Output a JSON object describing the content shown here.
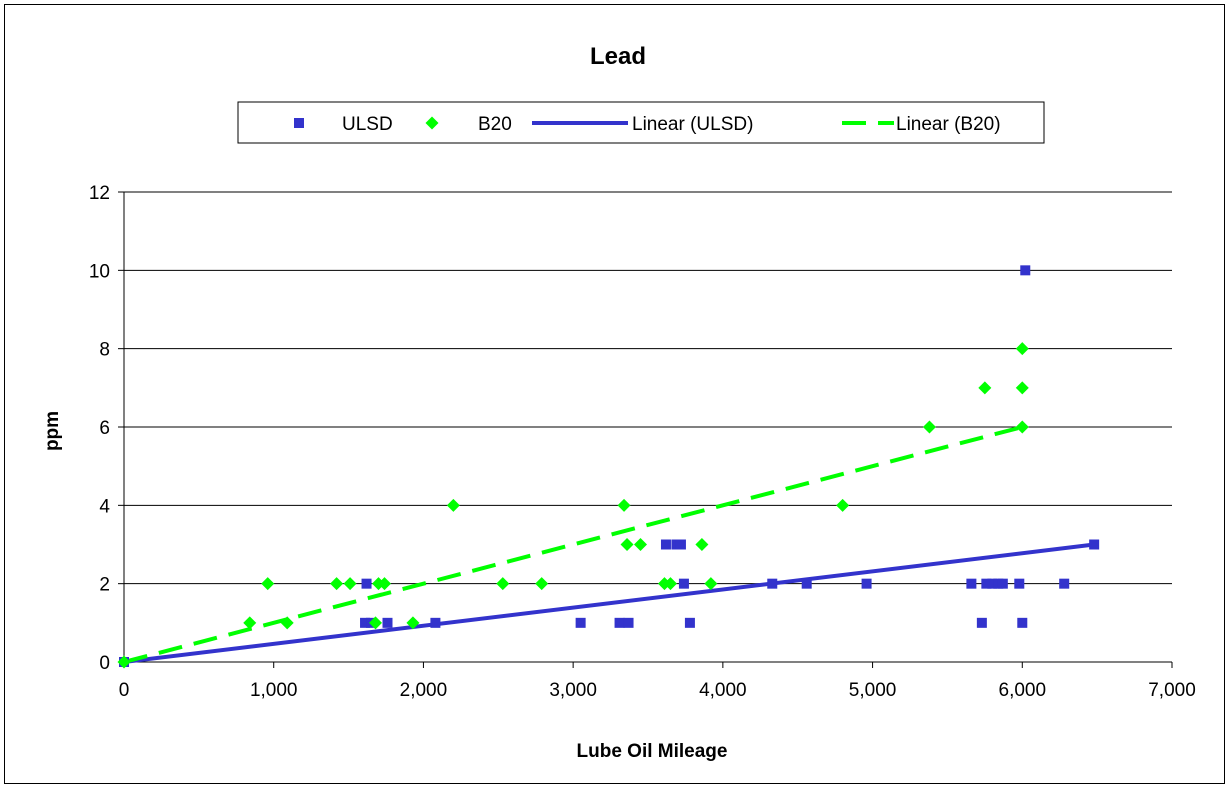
{
  "chart_data": {
    "type": "scatter",
    "title": "Lead",
    "xlabel": "Lube Oil Mileage",
    "ylabel": "ppm",
    "xlim": [
      0,
      7000
    ],
    "ylim": [
      0,
      12
    ],
    "x_ticks": [
      0,
      1000,
      2000,
      3000,
      4000,
      5000,
      6000,
      7000
    ],
    "x_tick_labels": [
      "0",
      "1,000",
      "2,000",
      "3,000",
      "4,000",
      "5,000",
      "6,000",
      "7,000"
    ],
    "y_ticks": [
      0,
      2,
      4,
      6,
      8,
      10,
      12
    ],
    "y_tick_labels": [
      "0",
      "2",
      "4",
      "6",
      "8",
      "10",
      "12"
    ],
    "grid": "horizontal major gridlines",
    "legend_position": "top",
    "colors": {
      "ulsd": "#3333cc",
      "b20": "#00ff00"
    },
    "series": [
      {
        "name": "ULSD",
        "marker": "square",
        "points": [
          [
            0,
            0
          ],
          [
            1620,
            2
          ],
          [
            1610,
            1
          ],
          [
            1650,
            1
          ],
          [
            1760,
            1
          ],
          [
            2080,
            1
          ],
          [
            3050,
            1
          ],
          [
            3310,
            1
          ],
          [
            3370,
            1
          ],
          [
            3620,
            3
          ],
          [
            3690,
            3
          ],
          [
            3720,
            3
          ],
          [
            3740,
            2
          ],
          [
            3780,
            1
          ],
          [
            4330,
            2
          ],
          [
            4560,
            2
          ],
          [
            4960,
            2
          ],
          [
            5660,
            2
          ],
          [
            5730,
            1
          ],
          [
            5760,
            2
          ],
          [
            5800,
            2
          ],
          [
            5840,
            2
          ],
          [
            5870,
            2
          ],
          [
            5980,
            2
          ],
          [
            6000,
            1
          ],
          [
            6020,
            10
          ],
          [
            6280,
            2
          ],
          [
            6480,
            3
          ]
        ]
      },
      {
        "name": "B20",
        "marker": "diamond",
        "points": [
          [
            0,
            0
          ],
          [
            840,
            1
          ],
          [
            960,
            2
          ],
          [
            1090,
            1
          ],
          [
            1420,
            2
          ],
          [
            1510,
            2
          ],
          [
            1680,
            1
          ],
          [
            1700,
            2
          ],
          [
            1740,
            2
          ],
          [
            1930,
            1
          ],
          [
            2200,
            4
          ],
          [
            2530,
            2
          ],
          [
            2790,
            2
          ],
          [
            3340,
            4
          ],
          [
            3360,
            3
          ],
          [
            3450,
            3
          ],
          [
            3610,
            2
          ],
          [
            3650,
            2
          ],
          [
            3860,
            3
          ],
          [
            3920,
            2
          ],
          [
            4800,
            4
          ],
          [
            5380,
            6
          ],
          [
            5750,
            7
          ],
          [
            6000,
            8
          ],
          [
            6000,
            7
          ],
          [
            6000,
            6
          ]
        ]
      },
      {
        "name": "Linear (ULSD)",
        "type": "line",
        "line_style": "solid",
        "points": [
          [
            0,
            0
          ],
          [
            6480,
            3
          ]
        ]
      },
      {
        "name": "Linear (B20)",
        "type": "line",
        "line_style": "dashed",
        "points": [
          [
            0,
            0
          ],
          [
            6000,
            6
          ]
        ]
      }
    ]
  }
}
